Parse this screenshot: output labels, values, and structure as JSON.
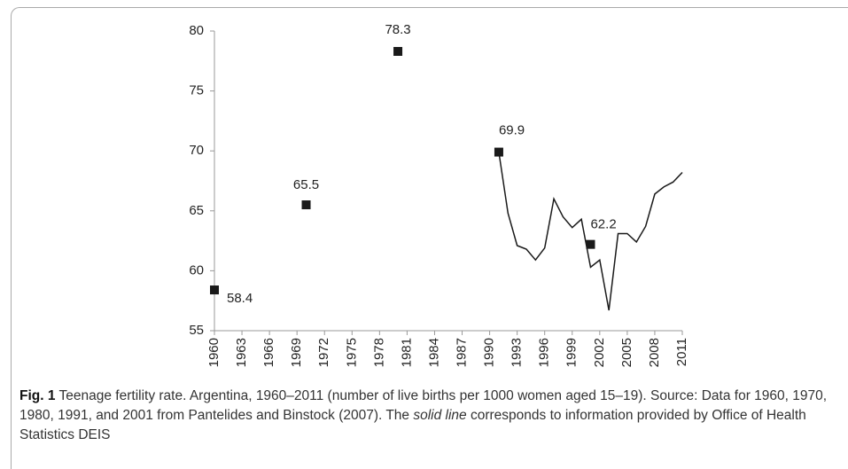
{
  "chart_data": {
    "type": "line",
    "xlim": [
      1960,
      2011
    ],
    "xticks": [
      1960,
      1963,
      1966,
      1969,
      1972,
      1975,
      1978,
      1981,
      1984,
      1987,
      1990,
      1993,
      1996,
      1999,
      2002,
      2005,
      2008,
      2011
    ],
    "ylim": [
      55,
      80
    ],
    "yticks": [
      55,
      60,
      65,
      70,
      75,
      80
    ],
    "series": [
      {
        "mode": "markers",
        "color": "#1a1a1a",
        "x": [
          1960,
          1970,
          1980,
          1991,
          2001
        ],
        "values": [
          58.4,
          65.5,
          78.3,
          69.9,
          62.2
        ]
      },
      {
        "mode": "line",
        "color": "#1a1a1a",
        "x": [
          1991,
          1992,
          1993,
          1994,
          1995,
          1996,
          1997,
          1998,
          1999,
          2000,
          2001,
          2002,
          2003,
          2004,
          2005,
          2006,
          2007,
          2008,
          2009,
          2010,
          2011
        ],
        "values": [
          69.9,
          64.8,
          62.1,
          61.8,
          60.9,
          61.9,
          66.0,
          64.5,
          63.6,
          64.3,
          60.3,
          60.9,
          56.7,
          63.1,
          63.1,
          62.4,
          63.7,
          66.4,
          67.0,
          67.4,
          68.2
        ]
      }
    ]
  },
  "caption": {
    "label": "Fig. 1",
    "text_before": "Teenage fertility rate. Argentina, 1960–2011 (number of live births per 1000 women aged 15–19). Source: Data for 1960, 1970, 1980, 1991, and 2001 from Pantelides and Binstock (2007). The",
    "italic": "solid line",
    "text_after": "corresponds to information provided by Office of Health Statistics DEIS"
  }
}
